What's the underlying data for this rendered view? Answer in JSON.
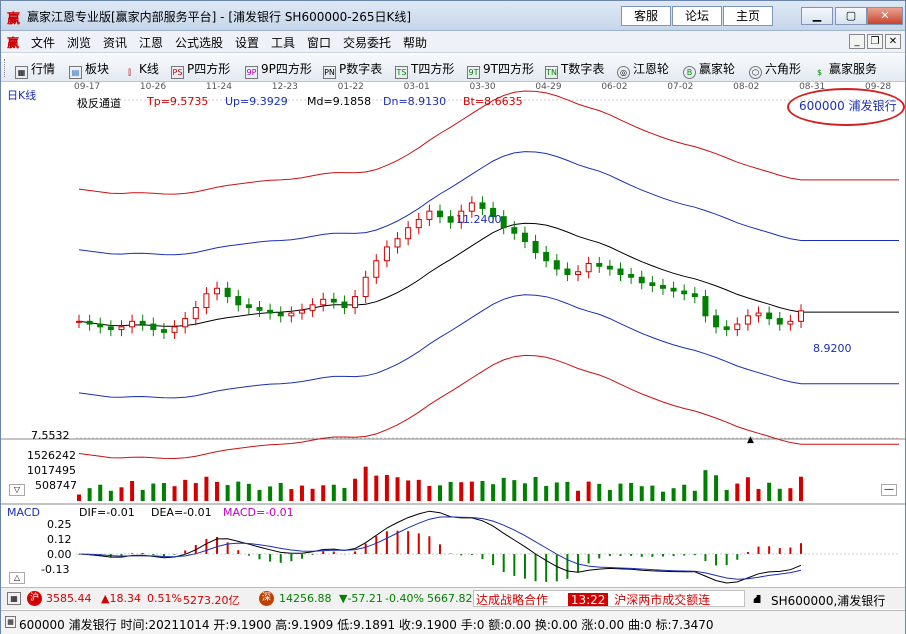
{
  "window": {
    "title": "赢家江恩专业版[赢家内部服务平台] - [浦发银行  SH600000-265日K线]",
    "top_buttons": [
      "客服",
      "论坛",
      "主页"
    ]
  },
  "menu": [
    "文件",
    "浏览",
    "资讯",
    "江恩",
    "公式选股",
    "设置",
    "工具",
    "窗口",
    "交易委托",
    "帮助"
  ],
  "toolbar": [
    {
      "label": "行情",
      "icon": "grid-icon"
    },
    {
      "label": "板块",
      "icon": "blocks-icon"
    },
    {
      "label": "K线",
      "icon": "candle-icon"
    },
    {
      "label": "P四方形",
      "icon": "ps-icon"
    },
    {
      "label": "9P四方形",
      "icon": "9p-icon"
    },
    {
      "label": "P数字表",
      "icon": "pn-icon"
    },
    {
      "label": "T四方形",
      "icon": "ts-icon"
    },
    {
      "label": "9T四方形",
      "icon": "9t-icon"
    },
    {
      "label": "T数字表",
      "icon": "tn-icon"
    },
    {
      "label": "江恩轮",
      "icon": "wheel-icon"
    },
    {
      "label": "赢家轮",
      "icon": "big-icon"
    },
    {
      "label": "六角形",
      "icon": "hexagon-icon"
    },
    {
      "label": "赢家服务",
      "icon": "dollar-icon"
    }
  ],
  "main_chart": {
    "period_label": "日K线",
    "dates": [
      "09-17",
      "10-26",
      "11-24",
      "12-23",
      "01-22",
      "03-01",
      "03-30",
      "04-29",
      "06-02",
      "07-02",
      "08-02",
      "08-31",
      "09-28"
    ],
    "indicator_name": "极反通道",
    "tp": "Tp=9.5735",
    "up": "Up=9.3929",
    "md": "Md=9.1858",
    "dn": "Dn=8.9130",
    "bt": "Bt=8.6635",
    "stock_label": "600000 浦发银行",
    "high_label": "11.2400",
    "low_label": "8.9200"
  },
  "volume": {
    "labels": [
      "7.5532",
      "1526242",
      "1017495",
      "508747"
    ]
  },
  "macd": {
    "name": "MACD",
    "dif": "DIF=-0.01",
    "dea": "DEA=-0.01",
    "macd": "MACD=-0.01",
    "axis": [
      "0.25",
      "0.12",
      "0.00",
      "-0.13"
    ]
  },
  "index_bar": {
    "sh_value": "3585.44",
    "sh_change": "▲18.34",
    "sh_pct": "0.51%",
    "sh_amount": "5273.20亿",
    "sz_value": "14256.88",
    "sz_change": "▼-57.21",
    "sz_pct": "-0.40%",
    "sz_amount": "5667.82",
    "ticker": "达成战略合作",
    "time": "13:22",
    "news": "沪深两市成交额连",
    "stock": "SH600000,浦发银行"
  },
  "info_bar": {
    "text": "600000 浦发银行 时间:20211014 开:9.1900 高:9.1909 低:9.1891 收:9.1900 手:0 额:0.00 换:0.00 涨:0.00 曲:0 标:7.3470"
  },
  "chart_data": {
    "type": "candlestick",
    "approx_close": [
      9.0,
      8.95,
      8.9,
      8.85,
      8.9,
      9.0,
      8.95,
      8.85,
      8.8,
      8.9,
      9.05,
      9.25,
      9.5,
      9.6,
      9.45,
      9.3,
      9.25,
      9.2,
      9.15,
      9.1,
      9.15,
      9.2,
      9.3,
      9.4,
      9.35,
      9.25,
      9.45,
      9.8,
      10.1,
      10.35,
      10.5,
      10.7,
      10.85,
      11.0,
      10.9,
      10.8,
      11.0,
      11.15,
      11.05,
      10.9,
      10.7,
      10.6,
      10.45,
      10.25,
      10.1,
      9.95,
      9.85,
      9.9,
      10.05,
      10.0,
      9.95,
      9.85,
      9.8,
      9.7,
      9.65,
      9.6,
      9.55,
      9.5,
      9.45,
      9.1,
      8.9,
      8.85,
      8.95,
      9.1,
      9.15,
      9.05,
      8.95,
      9.0,
      9.19
    ],
    "colors": {
      "up": "#d40000",
      "down": "#008000",
      "channel_outer": "#cc1111",
      "channel_inner": "#1b2fb5",
      "mid": "#000000"
    }
  }
}
